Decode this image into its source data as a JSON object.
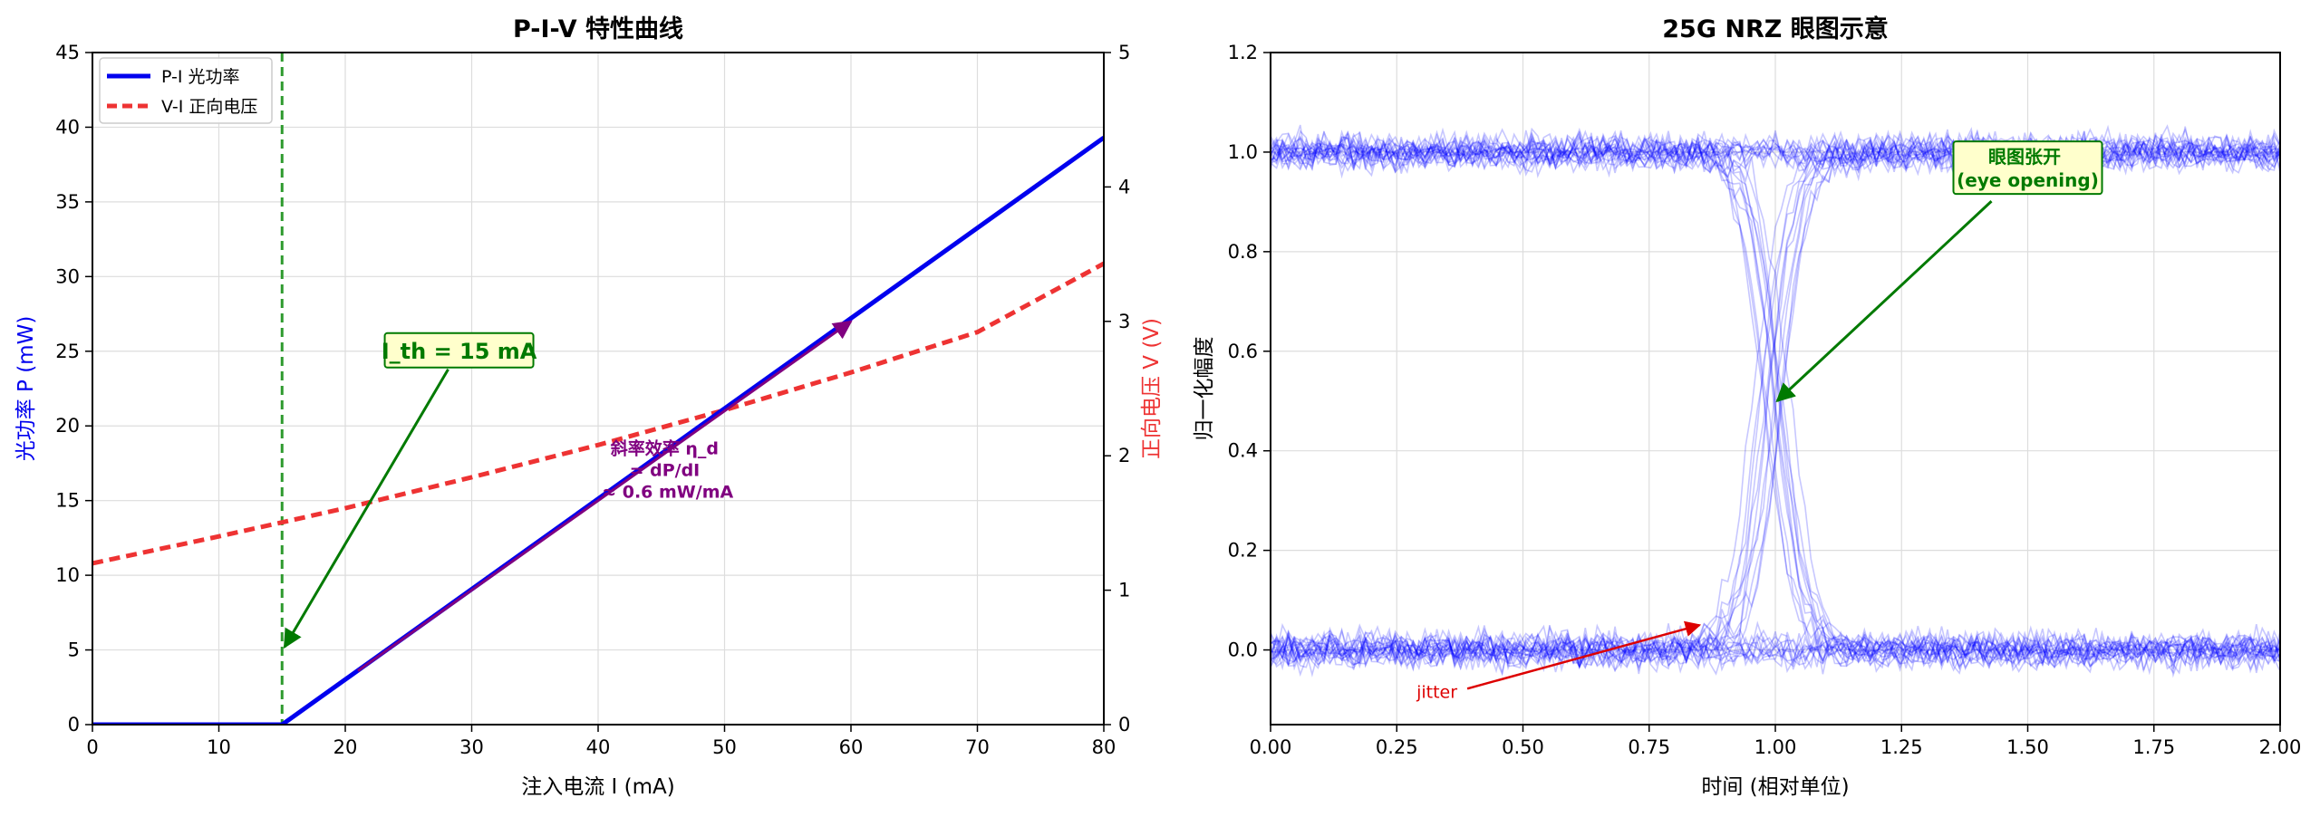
{
  "chart_data": [
    {
      "type": "line",
      "title": "P-I-V 特性曲线",
      "xlabel": "注入电流 I (mA)",
      "ylabel": "光功率 P (mW)",
      "y2label": "正向电压 V (V)",
      "xlim": [
        0,
        80
      ],
      "ylim": [
        0,
        45
      ],
      "y2lim": [
        0,
        5
      ],
      "xticks": [
        "0",
        "10",
        "20",
        "30",
        "40",
        "50",
        "60",
        "70",
        "80"
      ],
      "yticks": [
        "0",
        "5",
        "10",
        "15",
        "20",
        "25",
        "30",
        "35",
        "40",
        "45"
      ],
      "y2ticks": [
        "0",
        "1",
        "2",
        "3",
        "4",
        "5"
      ],
      "grid": true,
      "legend_position": "top-left",
      "series": [
        {
          "name": "P-I 光功率",
          "axis": "left",
          "color": "#0000ee",
          "style": "solid",
          "x": [
            0,
            15,
            80
          ],
          "y": [
            0,
            0,
            39.3
          ]
        },
        {
          "name": "V-I 正向电压",
          "axis": "right",
          "color": "#ee3333",
          "style": "dashed",
          "x": [
            0,
            10,
            20,
            30,
            40,
            50,
            60,
            70,
            80
          ],
          "y": [
            1.2,
            1.4,
            1.61,
            1.84,
            2.08,
            2.34,
            2.62,
            2.92,
            3.43
          ]
        }
      ],
      "threshold": {
        "x": 15,
        "color": "#2e9a2e"
      },
      "slope_segment": {
        "x": [
          21,
          60
        ],
        "y": [
          3.6,
          27
        ],
        "color": "#800080"
      },
      "annotations": [
        {
          "text": "I_th = 15 mA",
          "color": "#007a00",
          "text_at": [
            29,
            25
          ],
          "arrow_to": [
            15.2,
            5.2
          ]
        },
        {
          "lines": [
            "斜率效率 η_d",
            "= dP/dI",
            "≈ 0.6 mW/mA"
          ],
          "color": "#800080",
          "text_at": [
            45.5,
            17.5
          ]
        }
      ]
    },
    {
      "type": "line",
      "title": "25G NRZ 眼图示意",
      "xlabel": "时间 (相对单位)",
      "ylabel": "归一化幅度",
      "xlim": [
        0,
        2
      ],
      "ylim": [
        -0.15,
        1.2
      ],
      "xticks": [
        "0.00",
        "0.25",
        "0.50",
        "0.75",
        "1.00",
        "1.25",
        "1.50",
        "1.75",
        "2.00"
      ],
      "yticks": [
        "0.0",
        "0.2",
        "0.4",
        "0.6",
        "0.8",
        "1.0",
        "1.2"
      ],
      "grid": true,
      "trace_color": "#0000ff",
      "levels": [
        0.0,
        1.0
      ],
      "crossing_x": 1.0,
      "annotations": [
        {
          "lines": [
            "眼图张开",
            "(eye opening)"
          ],
          "color": "#007a00",
          "text_at": [
            1.5,
            0.945
          ],
          "arrow_to": [
            1.0,
            0.5
          ]
        },
        {
          "text": "jitter",
          "color": "#dd0000",
          "text_at": [
            0.3,
            -0.085
          ],
          "arrow_to": [
            0.85,
            0.05
          ]
        }
      ]
    }
  ]
}
